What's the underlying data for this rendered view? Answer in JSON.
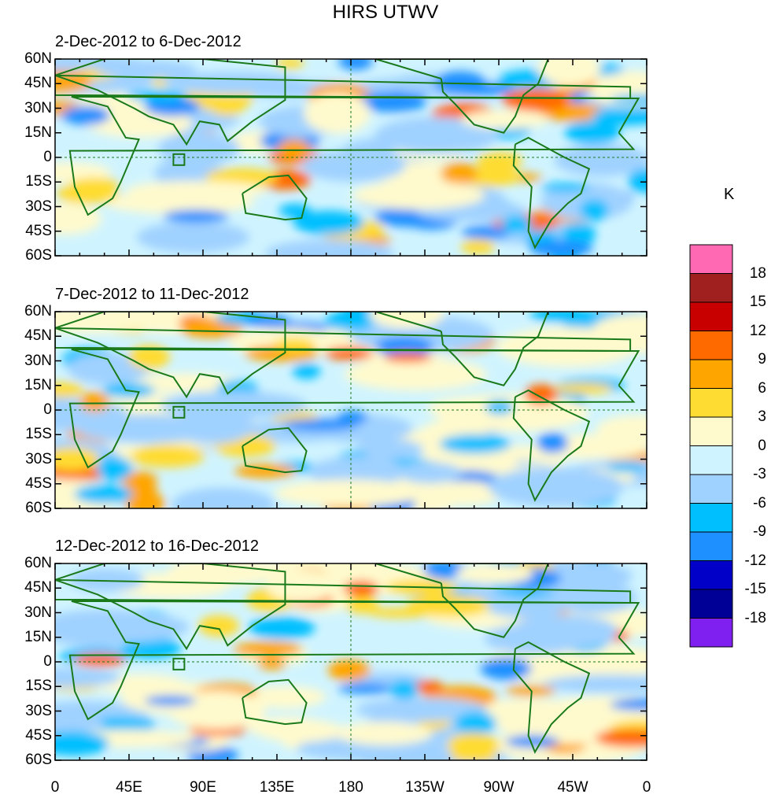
{
  "title": "HIRS UTWV",
  "panels": [
    {
      "title": "2-Dec-2012 to 6-Dec-2012"
    },
    {
      "title": "7-Dec-2012 to 11-Dec-2012"
    },
    {
      "title": "12-Dec-2012 to 16-Dec-2012"
    }
  ],
  "lat_labels": [
    "60N",
    "45N",
    "30N",
    "15N",
    "0",
    "15S",
    "30S",
    "45S",
    "60S"
  ],
  "lon_labels": [
    "0",
    "45E",
    "90E",
    "135E",
    "180",
    "135W",
    "90W",
    "45W",
    "0"
  ],
  "colorbar": {
    "unit": "K",
    "labels": [
      "18",
      "15",
      "12",
      "9",
      "6",
      "3",
      "0",
      "-3",
      "-6",
      "-9",
      "-12",
      "-15",
      "-18"
    ],
    "colors": [
      "#ff69b4",
      "#a02020",
      "#c80000",
      "#ff6a00",
      "#ffa500",
      "#ffdc32",
      "#fffacd",
      "#d0f4ff",
      "#a0d2ff",
      "#00bfff",
      "#1e90ff",
      "#0000c8",
      "#000096",
      "#8020f0"
    ]
  },
  "coastline_color": "#1a7a1a"
}
